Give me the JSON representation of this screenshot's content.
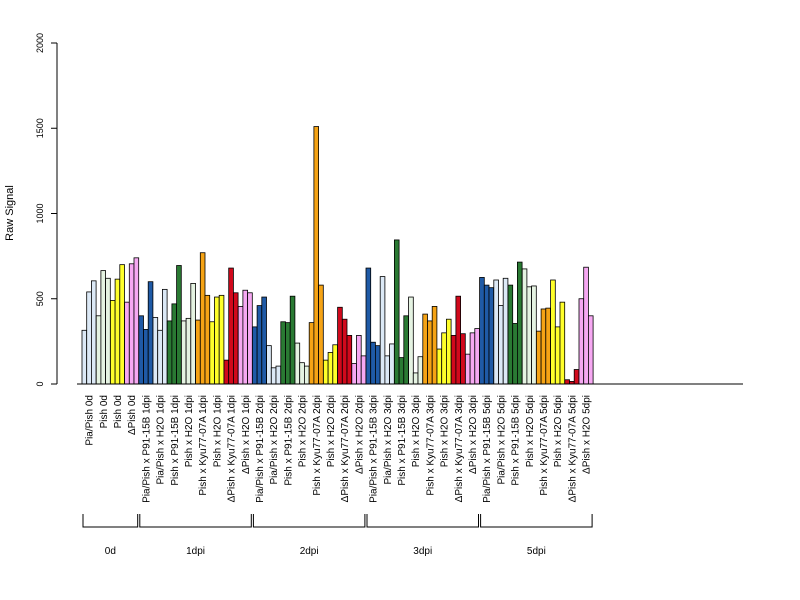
{
  "chart_data": {
    "type": "bar",
    "ylabel": "Raw Signal",
    "ylim": [
      0,
      2000
    ],
    "yticks": [
      0,
      500,
      1000,
      1500,
      2000
    ],
    "grid": false,
    "legend": "none",
    "bars_per_sample": 3,
    "bar_outline_color": "#000000",
    "colors": {
      "Pia/Pish": "#dce9f6",
      "Pia/Pish x P91-15B": "#1f5aa6",
      "Pia/Pish x H2O": "#dce9f6",
      "Pish": "#fdfdc9",
      "Pish x P91-15B": "#2a7a33",
      "Pish x H2O": "#e5f3e2",
      "Pish x Kyu77-07A": "#f5a315",
      "Pish x H2O (yellow)": "#ffff2a",
      "ΔPish x Kyu77-07A": "#d1091c",
      "ΔPish": "#f6a8f2"
    },
    "categories": [
      "Pia/Pish 0d",
      "Pish 0d",
      "Pish 0d",
      "ΔPish 0d",
      "Pia/Pish x P91-15B 1dpi",
      "Pia/Pish x H2O 1dpi",
      "Pish x P91-15B 1dpi",
      "Pish x H2O 1dpi",
      "Pish x Kyu77-07A 1dpi",
      "Pish x H2O 1dpi",
      "ΔPish x Kyu77-07A 1dpi",
      "ΔPish x H2O 1dpi",
      "Pia/Pish x P91-15B 2dpi",
      "Pia/Pish x H2O 2dpi",
      "Pish x P91-15B 2dpi",
      "Pish x H2O 2dpi",
      "Pish x Kyu77-07A 2dpi",
      "Pish x H2O 2dpi",
      "ΔPish x Kyu77-07A 2dpi",
      "ΔPish x H2O 2dpi",
      "Pia/Pish x P91-15B 3dpi",
      "Pia/Pish x H2O 3dpi",
      "Pish x P91-15B 3dpi",
      "Pish x H2O 3dpi",
      "Pish x Kyu77-07A 3dpi",
      "Pish x H2O 3dpi",
      "ΔPish x Kyu77-07A 3dpi",
      "ΔPish x H2O 3dpi",
      "Pia/Pish x P91-15B 5dpi",
      "Pia/Pish x H2O 5dpi",
      "Pish x P91-15B 5dpi",
      "Pish x H2O 5dpi",
      "Pish x Kyu77-07A 5dpi",
      "Pish x H2O 5dpi",
      "ΔPish x Kyu77-07A 5dpi",
      "ΔPish x H2O 5dpi"
    ],
    "samples": [
      {
        "label": "Pia/Pish 0d",
        "color": "#dce9f6",
        "values": [
          315,
          540,
          605
        ]
      },
      {
        "label": "Pish 0d",
        "color": "#e5f3e2",
        "values": [
          400,
          665,
          620
        ]
      },
      {
        "label": "Pish 0d",
        "color": "#ffff2a",
        "values": [
          490,
          615,
          700
        ]
      },
      {
        "label": "ΔPish 0d",
        "color": "#f6a8f2",
        "values": [
          480,
          705,
          740
        ]
      },
      {
        "label": "Pia/Pish x P91-15B 1dpi",
        "color": "#1f5aa6",
        "values": [
          400,
          320,
          600
        ]
      },
      {
        "label": "Pia/Pish x H2O 1dpi",
        "color": "#dce9f6",
        "values": [
          390,
          315,
          555
        ]
      },
      {
        "label": "Pish x P91-15B 1dpi",
        "color": "#2a7a33",
        "values": [
          370,
          470,
          695
        ]
      },
      {
        "label": "Pish x H2O 1dpi",
        "color": "#e5f3e2",
        "values": [
          370,
          385,
          590
        ]
      },
      {
        "label": "Pish x Kyu77-07A 1dpi",
        "color": "#f5a315",
        "values": [
          375,
          770,
          520
        ]
      },
      {
        "label": "Pish x H2O 1dpi",
        "color": "#ffff2a",
        "values": [
          365,
          510,
          520
        ]
      },
      {
        "label": "ΔPish x Kyu77-07A 1dpi",
        "color": "#d1091c",
        "values": [
          140,
          680,
          535
        ]
      },
      {
        "label": "ΔPish x H2O 1dpi",
        "color": "#f6a8f2",
        "values": [
          455,
          550,
          535
        ]
      },
      {
        "label": "Pia/Pish x P91-15B 2dpi",
        "color": "#1f5aa6",
        "values": [
          335,
          460,
          510
        ]
      },
      {
        "label": "Pia/Pish x H2O 2dpi",
        "color": "#dce9f6",
        "values": [
          225,
          95,
          105
        ]
      },
      {
        "label": "Pish x P91-15B 2dpi",
        "color": "#2a7a33",
        "values": [
          365,
          360,
          515
        ]
      },
      {
        "label": "Pish x H2O 2dpi",
        "color": "#e5f3e2",
        "values": [
          240,
          125,
          105
        ]
      },
      {
        "label": "Pish x Kyu77-07A 2dpi",
        "color": "#f5a315",
        "values": [
          360,
          1510,
          580
        ]
      },
      {
        "label": "Pish x H2O 2dpi",
        "color": "#ffff2a",
        "values": [
          140,
          185,
          230
        ]
      },
      {
        "label": "ΔPish x Kyu77-07A 2dpi",
        "color": "#d1091c",
        "values": [
          450,
          380,
          285
        ]
      },
      {
        "label": "ΔPish x H2O 2dpi",
        "color": "#f6a8f2",
        "values": [
          120,
          285,
          165
        ]
      },
      {
        "label": "Pia/Pish x P91-15B 3dpi",
        "color": "#1f5aa6",
        "values": [
          680,
          245,
          225
        ]
      },
      {
        "label": "Pia/Pish x H2O 3dpi",
        "color": "#dce9f6",
        "values": [
          630,
          165,
          235
        ]
      },
      {
        "label": "Pish x P91-15B 3dpi",
        "color": "#2a7a33",
        "values": [
          845,
          155,
          400
        ]
      },
      {
        "label": "Pish x H2O 3dpi",
        "color": "#e5f3e2",
        "values": [
          510,
          65,
          160
        ]
      },
      {
        "label": "Pish x Kyu77-07A 3dpi",
        "color": "#f5a315",
        "values": [
          410,
          370,
          455
        ]
      },
      {
        "label": "Pish x H2O 3dpi",
        "color": "#ffff2a",
        "values": [
          205,
          300,
          380
        ]
      },
      {
        "label": "ΔPish x Kyu77-07A 3dpi",
        "color": "#d1091c",
        "values": [
          285,
          515,
          295
        ]
      },
      {
        "label": "ΔPish x H2O 3dpi",
        "color": "#f6a8f2",
        "values": [
          175,
          300,
          325
        ]
      },
      {
        "label": "Pia/Pish x P91-15B 5dpi",
        "color": "#1f5aa6",
        "values": [
          625,
          580,
          565
        ]
      },
      {
        "label": "Pia/Pish x H2O 5dpi",
        "color": "#dce9f6",
        "values": [
          610,
          460,
          620
        ]
      },
      {
        "label": "Pish x P91-15B 5dpi",
        "color": "#2a7a33",
        "values": [
          580,
          355,
          715
        ]
      },
      {
        "label": "Pish x H2O 5dpi",
        "color": "#e5f3e2",
        "values": [
          675,
          570,
          575
        ]
      },
      {
        "label": "Pish x Kyu77-07A 5dpi",
        "color": "#f5a315",
        "values": [
          310,
          440,
          445
        ]
      },
      {
        "label": "Pish x H2O 5dpi",
        "color": "#ffff2a",
        "values": [
          610,
          335,
          480
        ]
      },
      {
        "label": "ΔPish x Kyu77-07A 5dpi",
        "color": "#d1091c",
        "values": [
          25,
          15,
          85
        ]
      },
      {
        "label": "ΔPish x H2O 5dpi",
        "color": "#f6a8f2",
        "values": [
          500,
          685,
          400
        ]
      }
    ],
    "groups": [
      {
        "label": "0d",
        "first": 0,
        "last": 3
      },
      {
        "label": "1dpi",
        "first": 4,
        "last": 11
      },
      {
        "label": "2dpi",
        "first": 12,
        "last": 19
      },
      {
        "label": "3dpi",
        "first": 20,
        "last": 27
      },
      {
        "label": "5dpi",
        "first": 28,
        "last": 35
      }
    ]
  }
}
